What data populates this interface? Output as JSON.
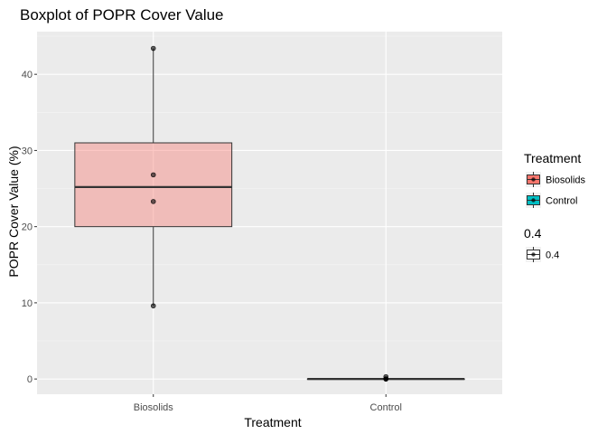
{
  "chart_data": {
    "type": "boxplot",
    "title": "Boxplot of POPR Cover Value",
    "xlabel": "Treatment",
    "ylabel": "POPR Cover Value (%)",
    "categories": [
      "Biosolids",
      "Control"
    ],
    "ylim": [
      -2,
      45.6
    ],
    "yticks": [
      0,
      10,
      20,
      30,
      40
    ],
    "ytick_labels": [
      "0",
      "10",
      "20",
      "30",
      "40"
    ],
    "grid": true,
    "boxes": [
      {
        "category": "Biosolids",
        "whisker_low": 9.6,
        "q1": 20.0,
        "median": 25.2,
        "q3": 31.0,
        "whisker_high": 43.4,
        "fill": "#F8766D",
        "points": [
          43.4,
          26.8,
          23.3,
          9.6
        ]
      },
      {
        "category": "Control",
        "whisker_low": 0.0,
        "q1": 0.0,
        "median": 0.0,
        "q3": 0.0,
        "whisker_high": 0.0,
        "fill": "#00BFC4",
        "points": [
          0.0,
          0.0,
          0.0,
          0.3
        ]
      }
    ],
    "legend": {
      "placement": "right",
      "groups": [
        {
          "title": "Treatment",
          "items": [
            {
              "label": "Biosolids",
              "color": "#F8766D"
            },
            {
              "label": "Control",
              "color": "#00BFC4"
            }
          ]
        },
        {
          "title": "0.4",
          "items": [
            {
              "label": "0.4",
              "color": "#ffffff"
            }
          ]
        }
      ]
    },
    "colors": {
      "panel_background": "#EBEBEB",
      "grid_major": "#ffffff",
      "box_alpha": 0.4,
      "point_color": "#000000",
      "line_color": "#333333"
    }
  }
}
